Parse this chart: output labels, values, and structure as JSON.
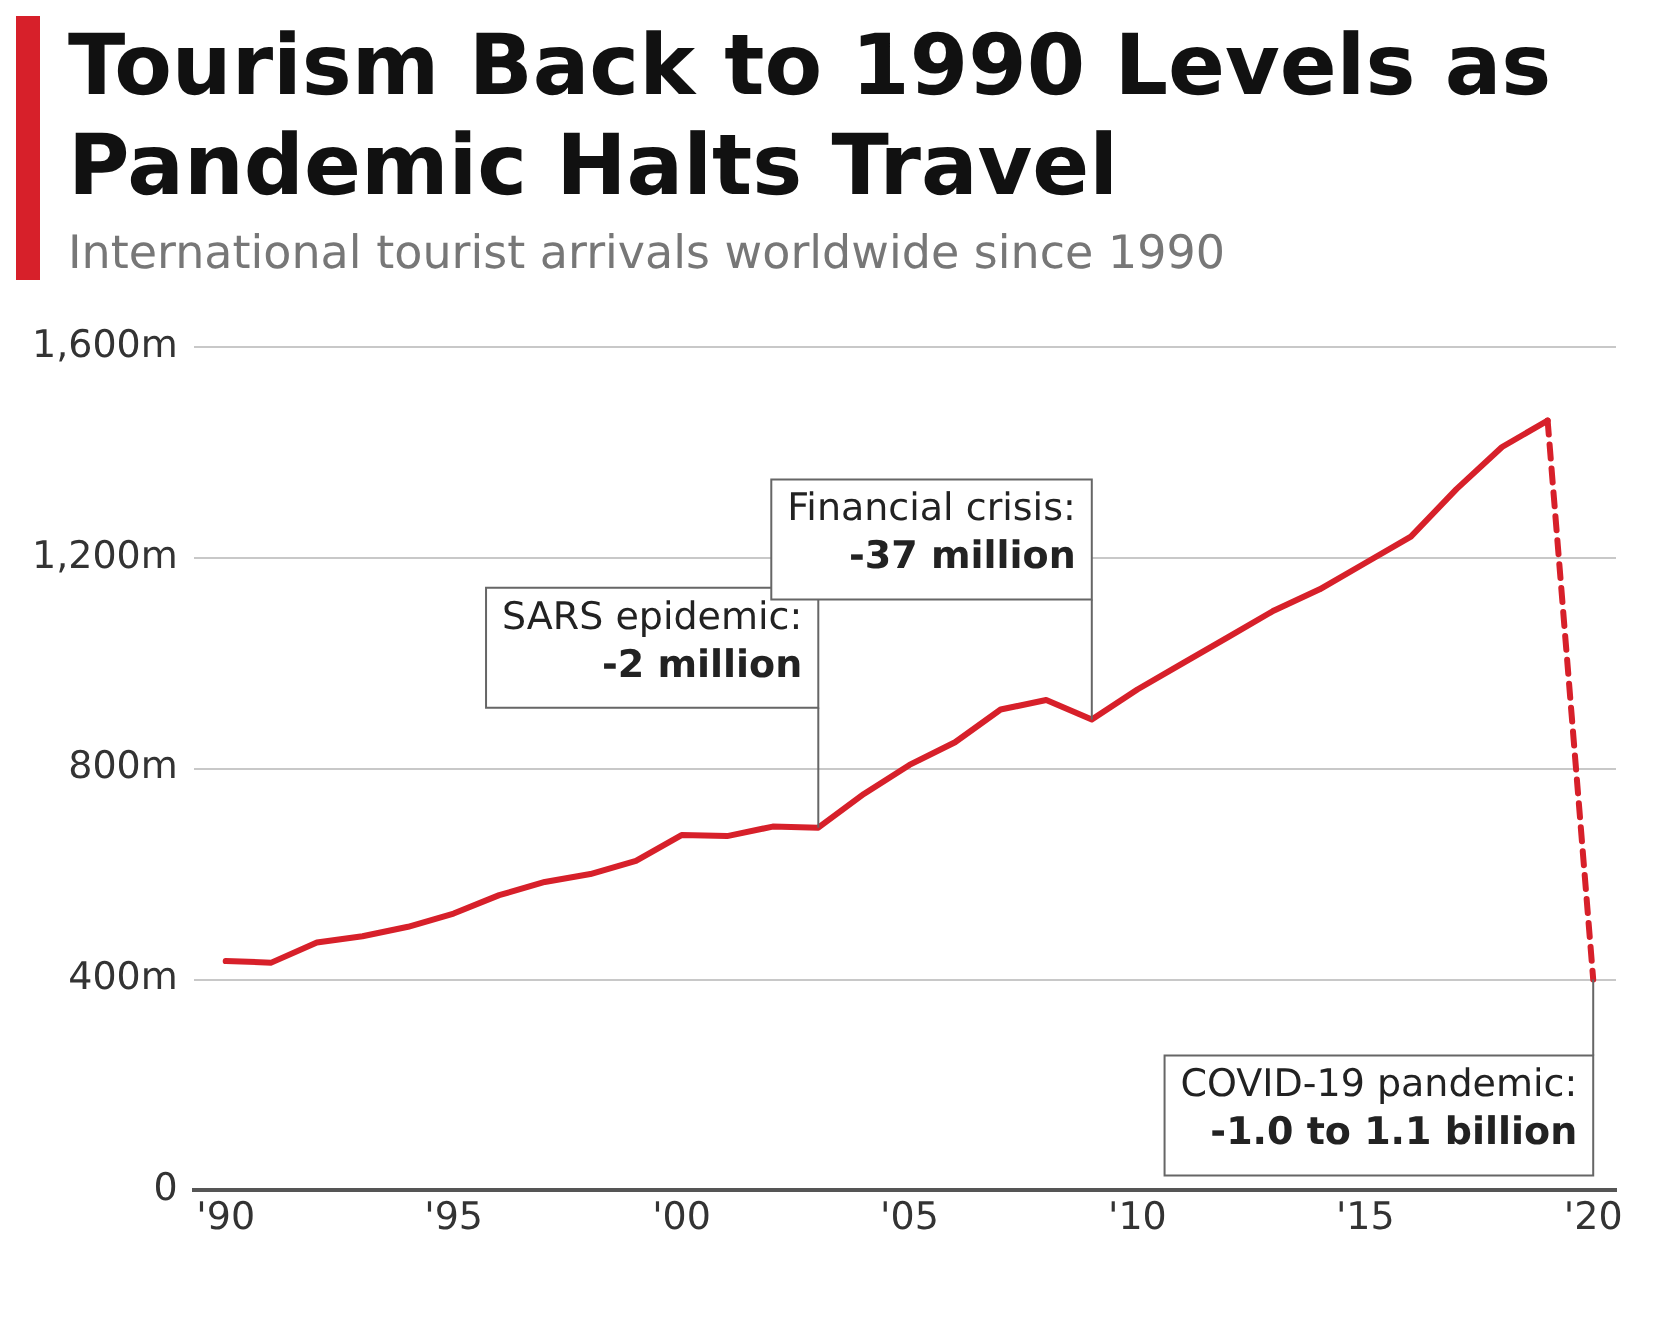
{
  "chart_data": {
    "type": "line",
    "title": "Tourism Back to 1990 Levels as Pandemic Halts Travel",
    "subtitle": "International tourist arrivals worldwide since 1990",
    "series": [
      {
        "color": "#d7202a",
        "line_style": "solid",
        "x": [
          1990,
          1991,
          1992,
          1993,
          1994,
          1995,
          1996,
          1997,
          1998,
          1999,
          2000,
          2001,
          2002,
          2003,
          2004,
          2005,
          2006,
          2007,
          2008,
          2009,
          2010,
          2011,
          2012,
          2013,
          2014,
          2015,
          2016,
          2017,
          2018,
          2019
        ],
        "values": [
          435,
          432,
          470,
          482,
          500,
          525,
          560,
          585,
          600,
          625,
          674,
          672,
          690,
          688,
          752,
          807,
          850,
          912,
          930,
          893,
          950,
          1000,
          1050,
          1100,
          1140,
          1190,
          1240,
          1330,
          1410,
          1460
        ]
      },
      {
        "color": "#d7202a",
        "line_style": "dashed",
        "x": [
          2019,
          2020
        ],
        "values": [
          1460,
          400
        ]
      }
    ],
    "xlim": [
      1989.3,
      2020.5
    ],
    "xticks": [
      {
        "value": 1990,
        "label": "'90"
      },
      {
        "value": 1995,
        "label": "'95"
      },
      {
        "value": 2000,
        "label": "'00"
      },
      {
        "value": 2005,
        "label": "'05"
      },
      {
        "value": 2010,
        "label": "'10"
      },
      {
        "value": 2015,
        "label": "'15"
      },
      {
        "value": 2020,
        "label": "'20"
      }
    ],
    "ylim": [
      0,
      1600
    ],
    "yticks": [
      0,
      {
        "value": 400,
        "label": "400m"
      },
      {
        "value": 800,
        "label": "800m"
      },
      {
        "value": 1200,
        "label": "1,200m"
      },
      {
        "value": 1600,
        "label": "1,600m"
      }
    ],
    "grid": "y",
    "legend": false,
    "marker": "none",
    "annotations": [
      {
        "text": "SARS epidemic:\n-2 million",
        "x": 2003,
        "y": 688
      },
      {
        "text": "Financial crisis:\n-37 million",
        "x": 2009,
        "y": 893
      },
      {
        "text": "COVID-19 pandemic:\n-1.0 to 1.1 billion",
        "x": 2020,
        "y": 400
      }
    ]
  }
}
